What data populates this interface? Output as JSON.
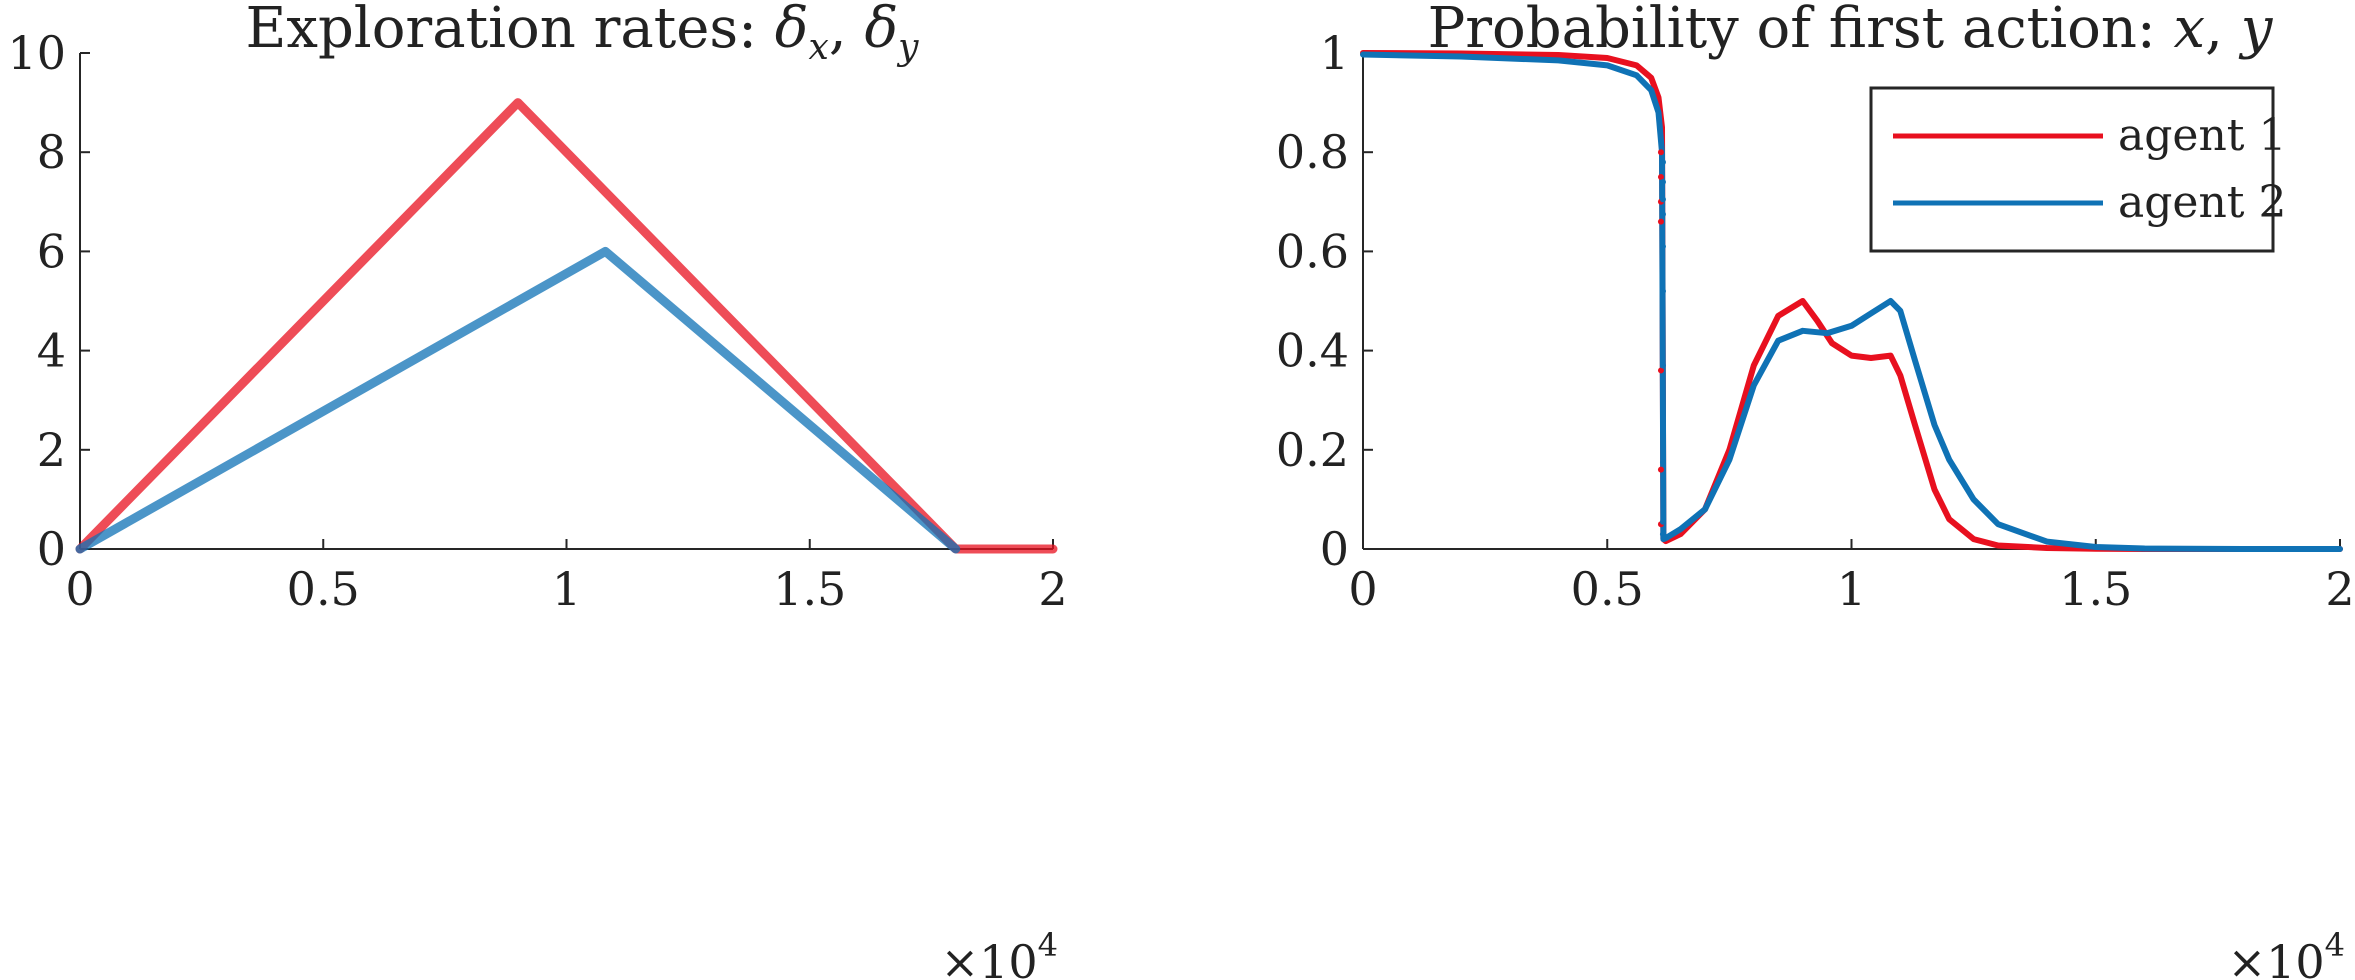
{
  "colors": {
    "agent1": "#e8101f",
    "agent2": "#0f72b5",
    "axis": "#262626"
  },
  "chart_data": [
    {
      "type": "line",
      "title": "Exploration rates: δx, δy",
      "title_main": "Exploration rates: ",
      "title_sym1": "δ",
      "title_sub1": "x",
      "title_sep": ", ",
      "title_sym2": "δ",
      "title_sub2": "y",
      "xlabel": "",
      "ylabel": "",
      "xlim": [
        0,
        2
      ],
      "ylim": [
        0,
        10
      ],
      "x_scale_label": "×10",
      "x_scale_exp": "4",
      "xticks": [
        "0",
        "0.5",
        "1",
        "1.5",
        "2"
      ],
      "yticks": [
        "0",
        "2",
        "4",
        "6",
        "8",
        "10"
      ],
      "grid": false,
      "legend": false,
      "series": [
        {
          "color": "#e8101f",
          "x": [
            0,
            0.9,
            1.8,
            2.0
          ],
          "y": [
            0,
            9,
            0,
            0
          ]
        },
        {
          "color": "#0f72b5",
          "x": [
            0,
            1.08,
            1.8
          ],
          "y": [
            0,
            6,
            0
          ]
        }
      ]
    },
    {
      "type": "line",
      "title": "Probability of first action: x, y",
      "title_main": "Probability of first action: ",
      "title_v1": "x",
      "title_sep": ", ",
      "title_v2": "y",
      "xlabel": "",
      "ylabel": "",
      "xlim": [
        0,
        2
      ],
      "ylim": [
        0,
        1
      ],
      "x_scale_label": "×10",
      "x_scale_exp": "4",
      "xticks": [
        "0",
        "0.5",
        "1",
        "1.5",
        "2"
      ],
      "yticks": [
        "0",
        "0.2",
        "0.4",
        "0.6",
        "0.8",
        "1"
      ],
      "grid": false,
      "legend": "top-right",
      "series": [
        {
          "name": "agent 1",
          "color": "#e8101f",
          "x": [
            0,
            0.2,
            0.4,
            0.5,
            0.56,
            0.59,
            0.605,
            0.612,
            0.615,
            0.62,
            0.65,
            0.7,
            0.75,
            0.8,
            0.85,
            0.9,
            0.93,
            0.96,
            1.0,
            1.04,
            1.08,
            1.1,
            1.13,
            1.17,
            1.2,
            1.25,
            1.3,
            1.4,
            1.5,
            1.6,
            1.8,
            2.0
          ],
          "y": [
            1.0,
            0.999,
            0.996,
            0.99,
            0.975,
            0.95,
            0.91,
            0.85,
            0.02,
            0.016,
            0.03,
            0.08,
            0.2,
            0.37,
            0.47,
            0.5,
            0.46,
            0.415,
            0.39,
            0.385,
            0.39,
            0.35,
            0.25,
            0.12,
            0.06,
            0.02,
            0.007,
            0.002,
            0.0005,
            0,
            0,
            0
          ]
        },
        {
          "name": "agent 2",
          "color": "#0f72b5",
          "x": [
            0,
            0.2,
            0.4,
            0.5,
            0.56,
            0.59,
            0.605,
            0.612,
            0.615,
            0.62,
            0.65,
            0.7,
            0.75,
            0.8,
            0.85,
            0.9,
            0.95,
            1.0,
            1.04,
            1.08,
            1.1,
            1.13,
            1.17,
            1.2,
            1.25,
            1.3,
            1.4,
            1.5,
            1.6,
            1.8,
            2.0
          ],
          "y": [
            0.997,
            0.993,
            0.985,
            0.975,
            0.955,
            0.925,
            0.88,
            0.8,
            0.02,
            0.022,
            0.04,
            0.08,
            0.18,
            0.33,
            0.42,
            0.44,
            0.435,
            0.45,
            0.475,
            0.5,
            0.48,
            0.38,
            0.25,
            0.18,
            0.1,
            0.05,
            0.015,
            0.004,
            0.001,
            0,
            0
          ]
        }
      ],
      "scatter_x": 0.612,
      "scatter_points": [
        {
          "color": "#e8101f",
          "values": [
            0.05,
            0.16,
            0.36,
            0.66,
            0.7,
            0.75,
            0.8
          ]
        },
        {
          "color": "#0f72b5",
          "values": [
            0.03,
            0.055,
            0.175,
            0.37,
            0.52,
            0.61,
            0.675,
            0.705,
            0.74,
            0.78
          ]
        }
      ]
    }
  ]
}
